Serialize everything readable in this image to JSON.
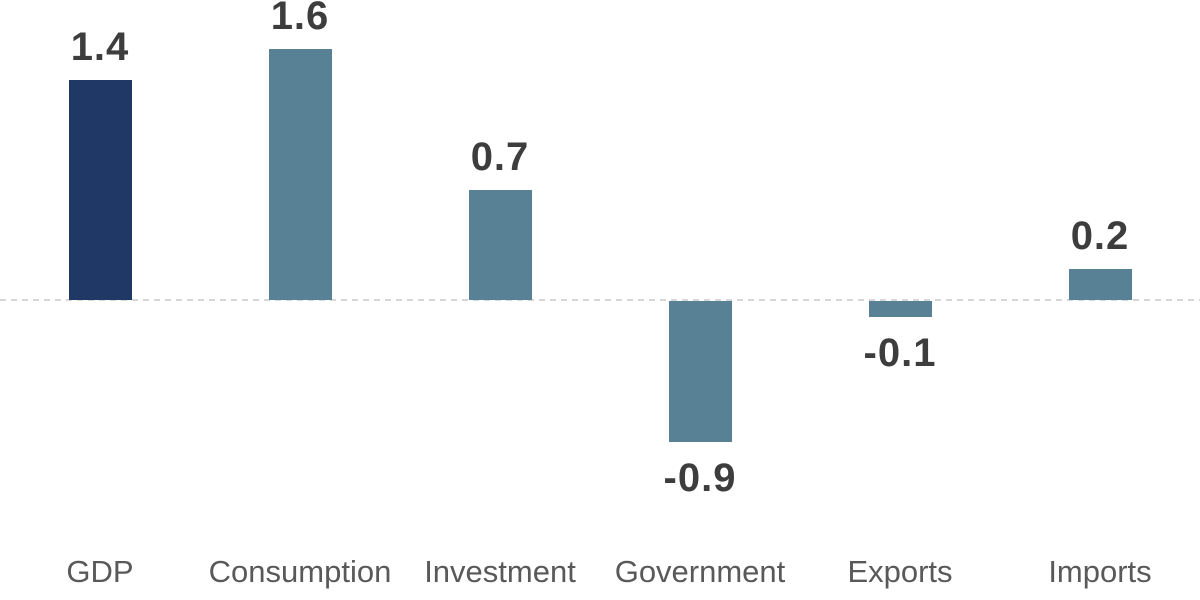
{
  "chart_data": {
    "type": "bar",
    "title": "",
    "xlabel": "",
    "ylabel": "",
    "categories": [
      "GDP",
      "Consumption",
      "Investment",
      "Government",
      "Exports",
      "Imports"
    ],
    "values": [
      1.4,
      1.6,
      0.7,
      -0.9,
      -0.1,
      0.2
    ],
    "value_labels": [
      "1.4",
      "1.6",
      "0.7",
      "-0.9",
      "-0.1",
      "0.2"
    ],
    "bar_colors": [
      "#1f3866",
      "#588196",
      "#588196",
      "#588196",
      "#588196",
      "#588196"
    ],
    "ylim": [
      -1.2,
      1.95
    ],
    "grid": false,
    "legend": false,
    "zero_line_style": "dashed"
  },
  "colors": {
    "highlight_bar": "#1f3866",
    "default_bar": "#588196",
    "value_label_text": "#3d3d3d",
    "category_label_text": "#595959",
    "zero_line": "#d7d7d7",
    "background": "#ffffff"
  }
}
